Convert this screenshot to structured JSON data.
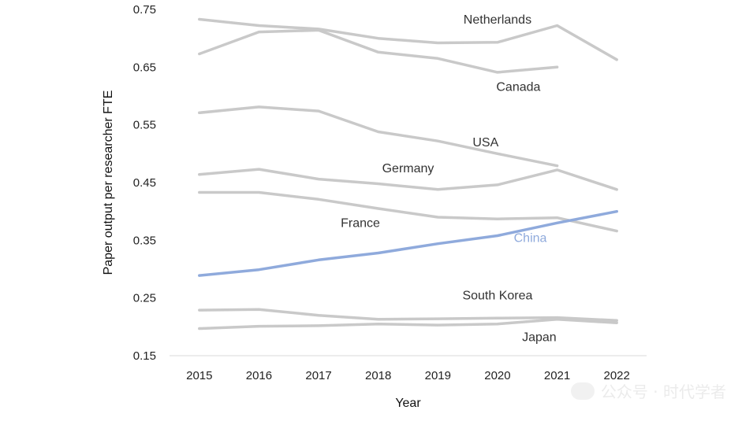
{
  "colors": {
    "highlight": "#8faadc",
    "others": "#c9c9c9",
    "axis": "#d9d9d9",
    "label": "#333333"
  },
  "watermark": {
    "text": "公众号 · 时代学者",
    "icon": "wechat-icon"
  },
  "chart_data": {
    "type": "line",
    "title": "",
    "xlabel": "Year",
    "ylabel": "Paper output per researcher FTE",
    "x": [
      "2015",
      "2016",
      "2017",
      "2018",
      "2019",
      "2020",
      "2021",
      "2022"
    ],
    "ylim": [
      0.15,
      0.75
    ],
    "yticks": [
      "0.75",
      "0.65",
      "0.55",
      "0.45",
      "0.35",
      "0.25",
      "0.15"
    ],
    "grid": false,
    "series": [
      {
        "name": "Netherlands",
        "values": [
          0.733,
          0.722,
          0.716,
          0.7,
          0.692,
          0.693,
          0.722,
          0.663
        ]
      },
      {
        "name": "Canada",
        "values": [
          0.673,
          0.711,
          0.714,
          0.676,
          0.665,
          0.641,
          0.65,
          null
        ]
      },
      {
        "name": "USA",
        "values": [
          0.571,
          0.581,
          0.574,
          0.538,
          0.522,
          0.5,
          0.479,
          null
        ]
      },
      {
        "name": "Germany",
        "values": [
          0.464,
          0.473,
          0.456,
          0.448,
          0.438,
          0.446,
          0.472,
          0.438
        ]
      },
      {
        "name": "France",
        "values": [
          0.433,
          0.433,
          0.421,
          0.405,
          0.39,
          0.387,
          0.389,
          0.366
        ]
      },
      {
        "name": "China",
        "values": [
          0.289,
          0.299,
          0.316,
          0.328,
          0.344,
          0.358,
          0.38,
          0.4
        ]
      },
      {
        "name": "South Korea",
        "values": [
          0.229,
          0.23,
          0.22,
          0.213,
          0.214,
          0.215,
          0.216,
          0.211
        ]
      },
      {
        "name": "Japan",
        "values": [
          0.197,
          0.201,
          0.202,
          0.205,
          0.203,
          0.205,
          0.213,
          0.207
        ]
      }
    ]
  }
}
